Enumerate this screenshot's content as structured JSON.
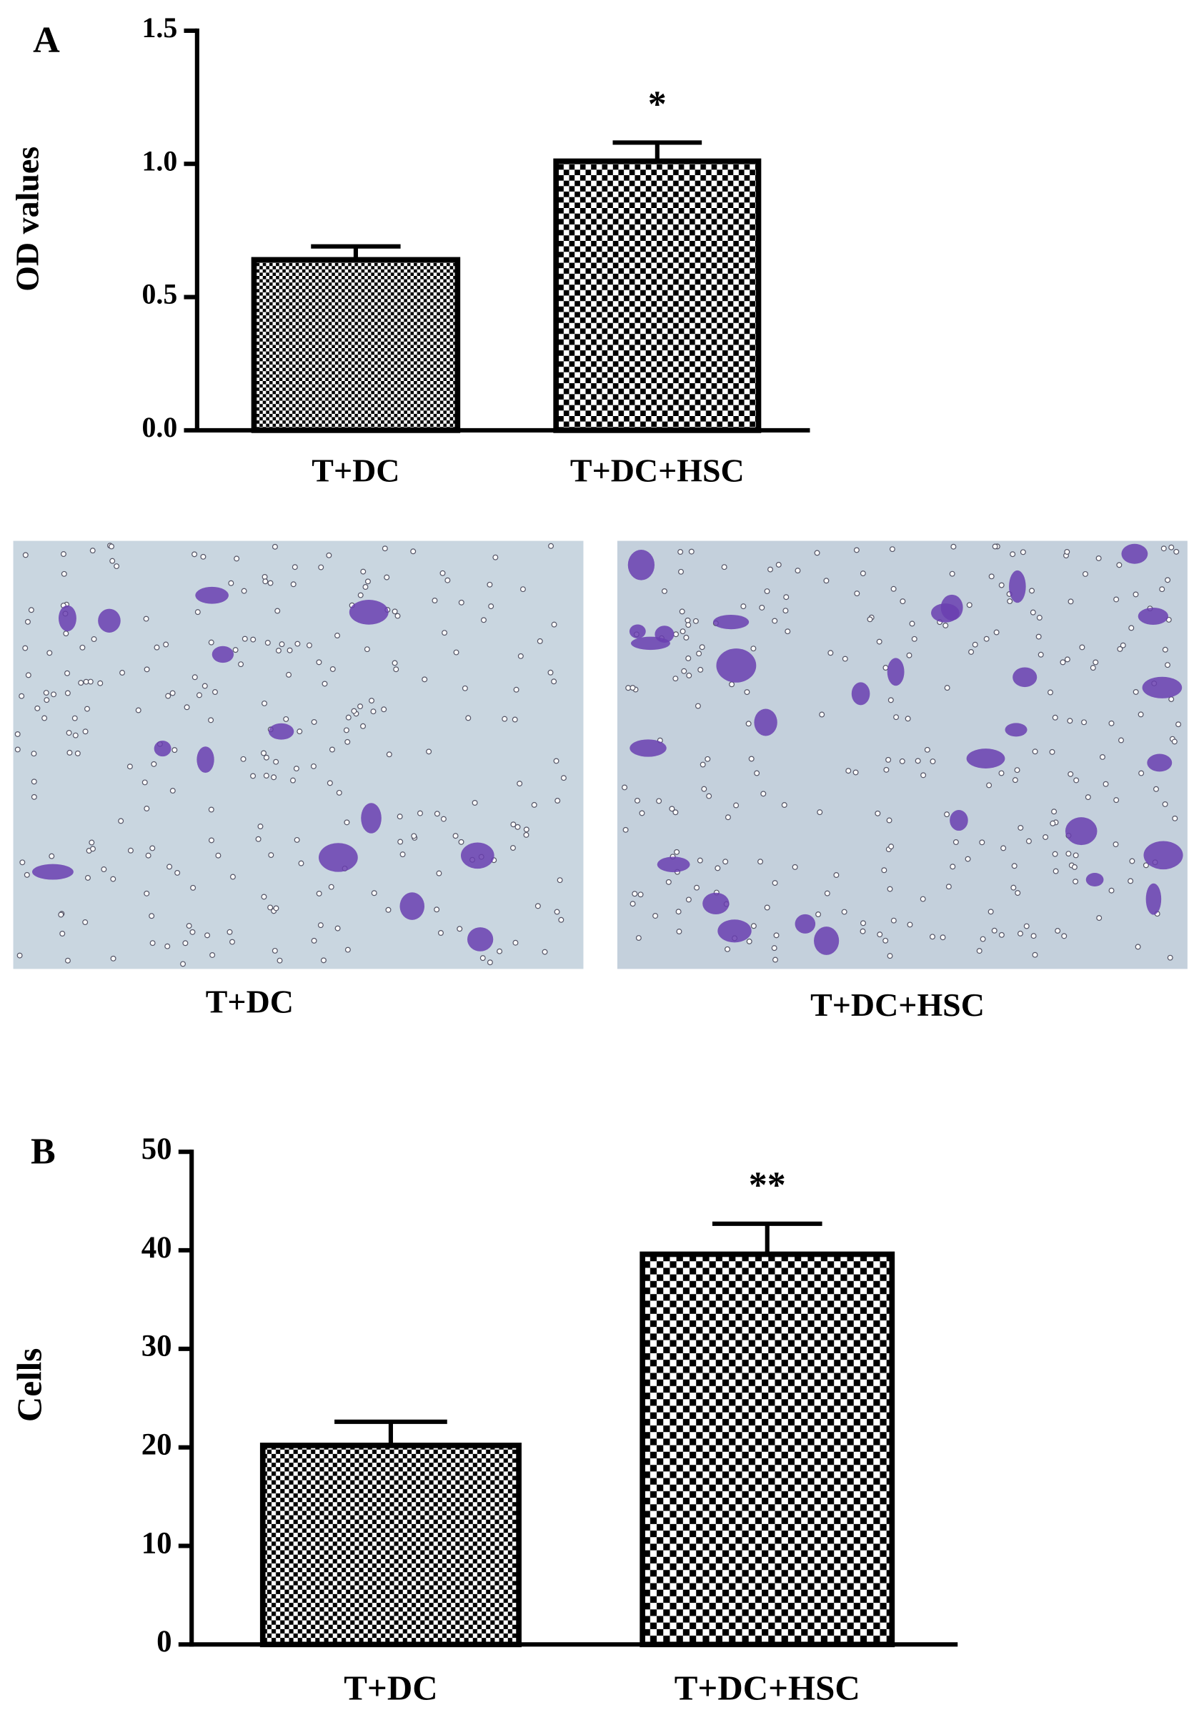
{
  "chart_data": [
    {
      "type": "bar",
      "panel_label": "A",
      "ylabel": "OD values",
      "categories": [
        "T+DC",
        "T+DC+HSC"
      ],
      "values": [
        0.64,
        1.01
      ],
      "errors": [
        0.05,
        0.07
      ],
      "significance_labels": [
        null,
        "*"
      ],
      "color": "#000000",
      "ylim": [
        0,
        1.5
      ],
      "yticks": [
        {
          "value": 0,
          "label": "0.0"
        },
        0.5,
        {
          "value": 1,
          "label": "1.0"
        },
        1.5
      ]
    },
    {
      "type": "bar",
      "panel_label": "B",
      "ylabel": "Cells",
      "categories": [
        "T+DC",
        "T+DC+HSC"
      ],
      "values": [
        20.2,
        39.6
      ],
      "errors": [
        2.4,
        3.1
      ],
      "significance_labels": [
        null,
        "**"
      ],
      "color": "#000000",
      "ylim": [
        0,
        50
      ],
      "yticks": [
        0,
        10,
        20,
        30,
        40,
        50
      ]
    }
  ],
  "micrographs": {
    "captions": [
      "T+DC",
      "T+DC+HSC"
    ]
  }
}
